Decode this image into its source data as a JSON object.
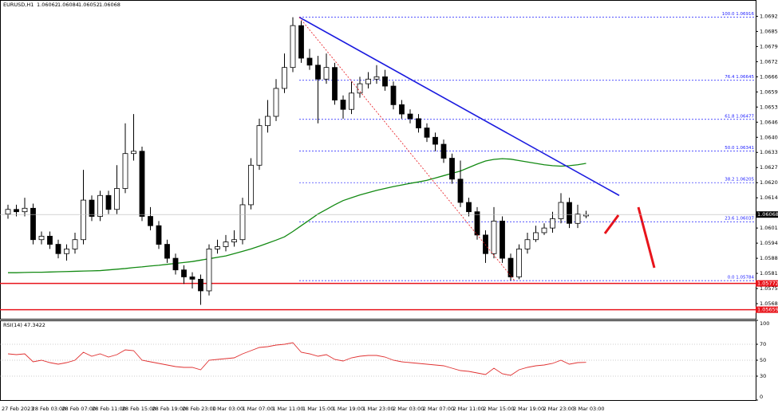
{
  "chart_data": {
    "type": "candlestick",
    "symbol": "EURUSD,H1",
    "open": [
      1.0607,
      1.0609,
      1.0608,
      1.06095,
      1.0596,
      1.05975,
      1.0594,
      1.059,
      1.0592,
      1.0596,
      1.0613,
      1.0606,
      1.0615,
      1.0609,
      1.0618,
      1.0633,
      1.0634,
      1.0606,
      1.0602,
      1.0594,
      1.0588,
      1.0583,
      1.058,
      1.0579,
      1.0574,
      1.0592,
      1.0593,
      1.0595,
      1.0596,
      1.0611,
      1.0628,
      1.0645,
      1.0649,
      1.0661,
      1.067,
      1.0688,
      1.0674,
      1.0671,
      1.0665,
      1.067,
      1.0656,
      1.0652,
      1.0659,
      1.0663,
      1.0665,
      1.0666,
      1.0662,
      1.0654,
      1.065,
      1.0648,
      1.0644,
      1.064,
      1.0637,
      1.0631,
      1.0622,
      1.0612,
      1.0608,
      1.0598,
      1.059,
      1.0604,
      1.0588,
      1.058,
      1.0592,
      1.0596,
      1.0599,
      1.0601,
      1.0605,
      1.0612,
      1.0603,
      1.06062
    ],
    "high": [
      1.0611,
      1.0611,
      1.0614,
      1.06115,
      1.05995,
      1.05995,
      1.0596,
      1.0594,
      1.0599,
      1.0626,
      1.0615,
      1.0617,
      1.0617,
      1.0628,
      1.0646,
      1.065,
      1.0636,
      1.061,
      1.0604,
      1.0596,
      1.059,
      1.0585,
      1.0582,
      1.0581,
      1.0594,
      1.0596,
      1.0598,
      1.06,
      1.0614,
      1.0631,
      1.0648,
      1.0656,
      1.0665,
      1.0676,
      1.06916,
      1.069,
      1.0678,
      1.0675,
      1.0676,
      1.0672,
      1.0658,
      1.0664,
      1.0666,
      1.0668,
      1.0671,
      1.0669,
      1.0664,
      1.0656,
      1.0652,
      1.065,
      1.0646,
      1.0642,
      1.0639,
      1.0633,
      1.063,
      1.0614,
      1.061,
      1.06,
      1.061,
      1.0606,
      1.059,
      1.0594,
      1.0599,
      1.0602,
      1.0603,
      1.0608,
      1.0616,
      1.0614,
      1.0611,
      1.06084
    ],
    "low": [
      1.0605,
      1.0606,
      1.0606,
      1.0594,
      1.0594,
      1.0592,
      1.0588,
      1.0587,
      1.059,
      1.0594,
      1.0604,
      1.0604,
      1.0607,
      1.0607,
      1.0616,
      1.063,
      1.0604,
      1.06,
      1.0592,
      1.0586,
      1.0581,
      1.0577,
      1.0575,
      1.0568,
      1.0572,
      1.059,
      1.0591,
      1.0593,
      1.0594,
      1.0609,
      1.0626,
      1.0642,
      1.0647,
      1.0659,
      1.0668,
      1.0672,
      1.0669,
      1.0646,
      1.0663,
      1.0654,
      1.0648,
      1.065,
      1.0657,
      1.0661,
      1.0663,
      1.066,
      1.0652,
      1.0648,
      1.0646,
      1.0642,
      1.0638,
      1.0634,
      1.0629,
      1.062,
      1.061,
      1.0606,
      1.0596,
      1.0586,
      1.0588,
      1.0586,
      1.05784,
      1.0579,
      1.059,
      1.0595,
      1.0598,
      1.0599,
      1.0603,
      1.0601,
      1.0601,
      1.06052
    ],
    "close": [
      1.0609,
      1.0608,
      1.06095,
      1.0596,
      1.05975,
      1.0594,
      1.059,
      1.0592,
      1.0596,
      1.0613,
      1.0606,
      1.0615,
      1.0609,
      1.0618,
      1.0633,
      1.0634,
      1.0606,
      1.0602,
      1.0594,
      1.0588,
      1.0583,
      1.058,
      1.0579,
      1.0574,
      1.0592,
      1.0593,
      1.0595,
      1.0596,
      1.0611,
      1.0628,
      1.0645,
      1.0649,
      1.0661,
      1.067,
      1.0688,
      1.0674,
      1.0671,
      1.0665,
      1.067,
      1.0656,
      1.0652,
      1.0659,
      1.0663,
      1.0665,
      1.0666,
      1.0662,
      1.0654,
      1.065,
      1.0648,
      1.0644,
      1.064,
      1.0637,
      1.0631,
      1.0622,
      1.0612,
      1.0608,
      1.0598,
      1.059,
      1.0604,
      1.0588,
      1.058,
      1.0592,
      1.0596,
      1.0599,
      1.0601,
      1.0605,
      1.0612,
      1.0603,
      1.0607,
      1.06068
    ],
    "moving_average": {
      "color": "#138a13",
      "values": [
        1.05818,
        1.05818,
        1.05819,
        1.0582,
        1.0582,
        1.05821,
        1.05822,
        1.05823,
        1.05824,
        1.05825,
        1.05826,
        1.05827,
        1.0583,
        1.05833,
        1.05836,
        1.0584,
        1.05843,
        1.05847,
        1.0585,
        1.05854,
        1.05858,
        1.05862,
        1.05866,
        1.05872,
        1.05878,
        1.05884,
        1.0589,
        1.059,
        1.0591,
        1.0592,
        1.05932,
        1.05945,
        1.05958,
        1.05972,
        1.05995,
        1.0602,
        1.06045,
        1.0607,
        1.0609,
        1.0611,
        1.06128,
        1.0614,
        1.06152,
        1.06162,
        1.06172,
        1.0618,
        1.06188,
        1.06195,
        1.06202,
        1.06208,
        1.06215,
        1.06225,
        1.06235,
        1.06245,
        1.06255,
        1.0627,
        1.06285,
        1.06298,
        1.06305,
        1.06308,
        1.06306,
        1.063,
        1.06294,
        1.06288,
        1.06282,
        1.06278,
        1.06276,
        1.06278,
        1.06282,
        1.06288
      ]
    },
    "ylim": [
      1.0562,
      1.0699
    ],
    "yticks": [
      {
        "value": 1.0692,
        "label": "1.06920"
      },
      {
        "value": 1.06855,
        "label": "1.06855"
      },
      {
        "value": 1.0679,
        "label": "1.06790"
      },
      {
        "value": 1.06725,
        "label": "1.06725"
      },
      {
        "value": 1.0666,
        "label": "1.06660"
      },
      {
        "value": 1.06595,
        "label": "1.06595"
      },
      {
        "value": 1.0653,
        "label": "1.06530"
      },
      {
        "value": 1.06465,
        "label": "1.06465"
      },
      {
        "value": 1.064,
        "label": "1.06400"
      },
      {
        "value": 1.06335,
        "label": "1.06335"
      },
      {
        "value": 1.0627,
        "label": "1.06270"
      },
      {
        "value": 1.06205,
        "label": "1.06205"
      },
      {
        "value": 1.0614,
        "label": "1.06140"
      },
      {
        "value": 1.0601,
        "label": "1.06010"
      },
      {
        "value": 1.05945,
        "label": "1.05945"
      },
      {
        "value": 1.0588,
        "label": "1.05880"
      },
      {
        "value": 1.05815,
        "label": "1.05815"
      },
      {
        "value": 1.0575,
        "label": "1.05750"
      },
      {
        "value": 1.05685,
        "label": "1.05685"
      }
    ],
    "fib_levels": [
      {
        "value": 1.06916,
        "label": "100.0 1.06916"
      },
      {
        "value": 1.06645,
        "label": "76.4 1.06645"
      },
      {
        "value": 1.06477,
        "label": "61.8 1.06477"
      },
      {
        "value": 1.06341,
        "label": "50.0 1.06341"
      },
      {
        "value": 1.06205,
        "label": "38.2 1.06205"
      },
      {
        "value": 1.06037,
        "label": "23.6 1.06037"
      },
      {
        "value": 1.05784,
        "label": "0.0 1.05784"
      }
    ],
    "support_levels": [
      1.05772,
      1.05659
    ],
    "trendline": [
      1.06916,
      1.0615
    ],
    "retracement_line": [
      1.06916,
      1.05784
    ],
    "xtick_labels": [
      "27 Feb 2023",
      "28 Feb 03:00",
      "28 Feb 07:00",
      "28 Feb 11:00",
      "28 Feb 15:00",
      "28 Feb 19:00",
      "28 Feb 23:00",
      "1 Mar 03:00",
      "1 Mar 07:00",
      "1 Mar 11:00",
      "1 Mar 15:00",
      "1 Mar 19:00",
      "1 Mar 23:00",
      "2 Mar 03:00",
      "2 Mar 07:00",
      "2 Mar 11:00",
      "2 Mar 15:00",
      "2 Mar 19:00",
      "2 Mar 23:00",
      "3 Mar 03:00"
    ],
    "rsi": {
      "title": "RSI(14)",
      "color": "#e03030",
      "ylim": [
        0,
        100
      ],
      "yticks": [
        100,
        70,
        50,
        30,
        0
      ],
      "values": [
        58,
        57,
        58,
        48,
        50,
        47,
        45,
        47,
        50,
        60,
        55,
        58,
        54,
        57,
        63,
        62,
        50,
        48,
        46,
        44,
        42,
        41,
        41,
        38,
        50,
        51,
        52,
        53,
        58,
        62,
        66,
        67,
        69,
        70,
        72,
        60,
        58,
        55,
        57,
        51,
        49,
        53,
        55,
        56,
        56,
        54,
        50,
        48,
        47,
        46,
        45,
        44,
        43,
        40,
        37,
        36,
        34,
        32,
        40,
        33,
        31,
        38,
        41,
        43,
        44,
        46,
        50,
        45,
        47,
        47.3422
      ]
    }
  }
}
